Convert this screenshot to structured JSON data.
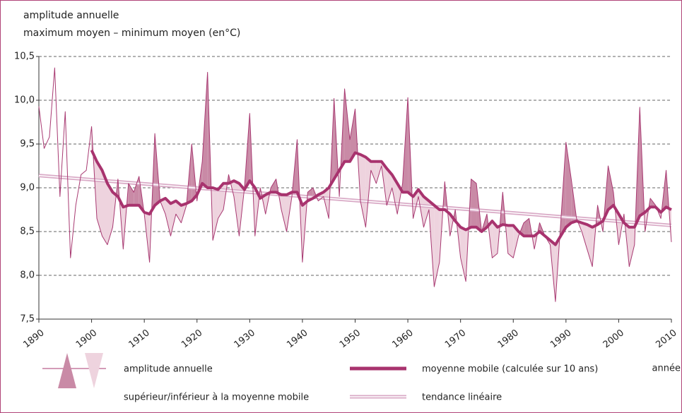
{
  "chart_data": {
    "type": "line",
    "title_lines": [
      "amplitude annuelle",
      "maximum moyen – minimum moyen (en°C)"
    ],
    "x_label": "année",
    "x": [
      1890,
      1891,
      1892,
      1893,
      1894,
      1895,
      1896,
      1897,
      1898,
      1899,
      1900,
      1901,
      1902,
      1903,
      1904,
      1905,
      1906,
      1907,
      1908,
      1909,
      1910,
      1911,
      1912,
      1913,
      1914,
      1915,
      1916,
      1917,
      1918,
      1919,
      1920,
      1921,
      1922,
      1923,
      1924,
      1925,
      1926,
      1927,
      1928,
      1929,
      1930,
      1931,
      1932,
      1933,
      1934,
      1935,
      1936,
      1937,
      1938,
      1939,
      1940,
      1941,
      1942,
      1943,
      1944,
      1945,
      1946,
      1947,
      1948,
      1949,
      1950,
      1951,
      1952,
      1953,
      1954,
      1955,
      1956,
      1957,
      1958,
      1959,
      1960,
      1961,
      1962,
      1963,
      1964,
      1965,
      1966,
      1967,
      1968,
      1969,
      1970,
      1971,
      1972,
      1973,
      1974,
      1975,
      1976,
      1977,
      1978,
      1979,
      1980,
      1981,
      1982,
      1983,
      1984,
      1985,
      1986,
      1987,
      1988,
      1989,
      1990,
      1991,
      1992,
      1993,
      1994,
      1995,
      1996,
      1997,
      1998,
      1999,
      2000,
      2001,
      2002,
      2003,
      2004,
      2005,
      2006,
      2007,
      2008,
      2009,
      2010
    ],
    "series": [
      {
        "name": "amplitude annuelle",
        "color": "#a83a72",
        "values": [
          9.93,
          9.45,
          9.58,
          10.37,
          8.9,
          9.87,
          8.2,
          8.8,
          9.15,
          9.2,
          9.7,
          8.65,
          8.45,
          8.35,
          8.55,
          9.1,
          8.3,
          9.05,
          8.95,
          9.13,
          8.7,
          8.15,
          9.62,
          8.85,
          8.7,
          8.45,
          8.7,
          8.6,
          8.8,
          9.5,
          8.85,
          9.3,
          10.32,
          8.4,
          8.65,
          8.75,
          9.15,
          8.9,
          8.45,
          9.0,
          9.85,
          8.45,
          9.0,
          8.7,
          9.0,
          9.1,
          8.75,
          8.5,
          8.9,
          9.55,
          8.15,
          8.95,
          9.0,
          8.85,
          8.9,
          8.65,
          10.02,
          8.9,
          10.13,
          9.55,
          9.9,
          8.85,
          8.55,
          9.2,
          9.05,
          9.25,
          8.8,
          9.0,
          8.7,
          9.05,
          10.03,
          8.65,
          8.9,
          8.55,
          8.75,
          7.87,
          8.15,
          9.07,
          8.45,
          8.75,
          8.2,
          7.93,
          9.1,
          9.05,
          8.5,
          8.7,
          8.2,
          8.25,
          8.95,
          8.25,
          8.2,
          8.45,
          8.6,
          8.65,
          8.3,
          8.6,
          8.45,
          8.35,
          7.7,
          8.6,
          9.52,
          9.1,
          8.65,
          8.5,
          8.3,
          8.1,
          8.8,
          8.5,
          9.25,
          8.95,
          8.35,
          8.7,
          8.1,
          8.35,
          9.92,
          8.5,
          8.88,
          8.8,
          8.65,
          9.2,
          8.38
        ]
      },
      {
        "name": "moyenne mobile (calculée sur 10 ans)",
        "color": "#a8336e",
        "values": [
          null,
          null,
          null,
          null,
          null,
          null,
          null,
          null,
          null,
          null,
          9.43,
          9.3,
          9.2,
          9.05,
          8.95,
          8.9,
          8.78,
          8.8,
          8.8,
          8.8,
          8.72,
          8.7,
          8.8,
          8.85,
          8.88,
          8.82,
          8.85,
          8.8,
          8.82,
          8.85,
          8.92,
          9.05,
          9.0,
          9.0,
          8.98,
          9.05,
          9.05,
          9.08,
          9.05,
          8.98,
          9.08,
          9.0,
          8.88,
          8.92,
          8.95,
          8.95,
          8.92,
          8.92,
          8.95,
          8.95,
          8.8,
          8.85,
          8.88,
          8.92,
          8.95,
          9.0,
          9.1,
          9.2,
          9.3,
          9.3,
          9.4,
          9.38,
          9.35,
          9.3,
          9.3,
          9.3,
          9.22,
          9.15,
          9.05,
          8.95,
          8.95,
          8.9,
          8.98,
          8.9,
          8.85,
          8.8,
          8.75,
          8.75,
          8.7,
          8.62,
          8.55,
          8.52,
          8.55,
          8.55,
          8.5,
          8.55,
          8.62,
          8.55,
          8.58,
          8.57,
          8.57,
          8.5,
          8.45,
          8.45,
          8.45,
          8.5,
          8.45,
          8.4,
          8.35,
          8.45,
          8.55,
          8.6,
          8.62,
          8.6,
          8.58,
          8.55,
          8.58,
          8.62,
          8.75,
          8.8,
          8.7,
          8.6,
          8.55,
          8.55,
          8.68,
          8.72,
          8.78,
          8.78,
          8.72,
          8.78,
          8.75
        ]
      }
    ],
    "fill_legend": {
      "label": "supérieur/inférieur à la moyenne mobile",
      "above_color": "#c98aa6",
      "below_color": "#eed3de"
    },
    "trend": {
      "name": "tendance linéaire",
      "color": "#d9aac6",
      "x": [
        1890,
        2010
      ],
      "values": [
        9.14,
        8.57
      ]
    },
    "xlim": [
      1890,
      2010
    ],
    "xticks": [
      1890,
      1900,
      1910,
      1920,
      1930,
      1940,
      1950,
      1960,
      1970,
      1980,
      1990,
      2000,
      2010
    ],
    "ylim": [
      7.5,
      10.5
    ],
    "yticks": [
      {
        "value": 7.5,
        "label": "7,5"
      },
      {
        "value": 8.0,
        "label": "8,0"
      },
      {
        "value": 8.5,
        "label": "8,5"
      },
      {
        "value": 9.0,
        "label": "9,0"
      },
      {
        "value": 9.5,
        "label": "9,5"
      },
      {
        "value": 10.0,
        "label": "10,0"
      },
      {
        "value": 10.5,
        "label": "10,5"
      }
    ],
    "grid": true
  }
}
